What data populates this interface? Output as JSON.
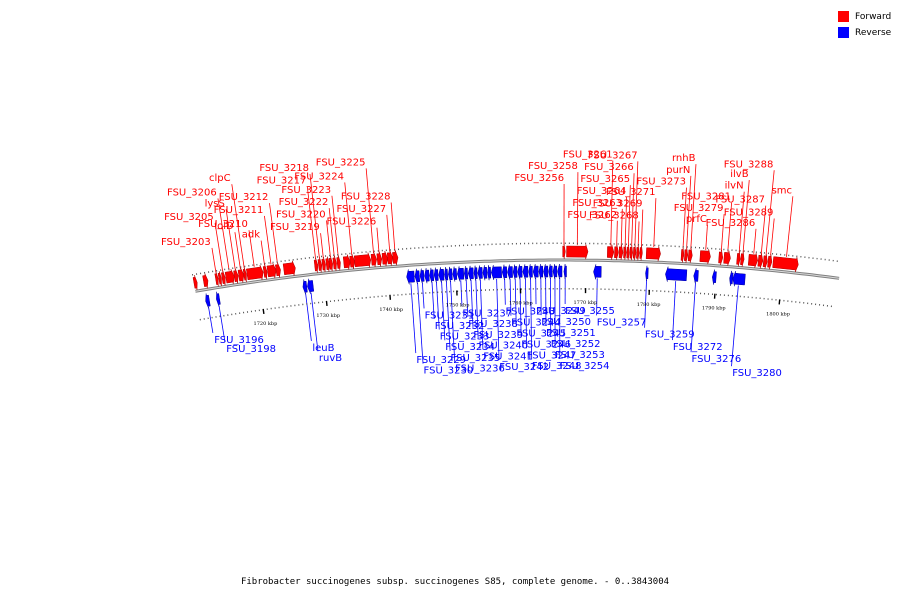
{
  "caption": "Fibrobacter succinogenes subsp. succinogenes S85, complete genome. - 0..3843004",
  "legend": [
    {
      "label": "Forward",
      "color": "#ff0000"
    },
    {
      "label": "Reverse",
      "color": "#0000ff"
    }
  ],
  "colors": {
    "forward": "#ff0000",
    "reverse": "#0000ff",
    "backbone": "#7f7f7f"
  },
  "ticks": [
    {
      "label": "1720 kbp",
      "pos": 0.1
    },
    {
      "label": "1730 kbp",
      "pos": 0.2
    },
    {
      "label": "1740 kbp",
      "pos": 0.3
    },
    {
      "label": "1750 kbp",
      "pos": 0.405
    },
    {
      "label": "1760 kbp",
      "pos": 0.505
    },
    {
      "label": "1770 kbp",
      "pos": 0.607
    },
    {
      "label": "1780 kbp",
      "pos": 0.707
    },
    {
      "label": "1790 kbp",
      "pos": 0.81
    },
    {
      "label": "1800 kbp",
      "pos": 0.912
    }
  ],
  "genes": [
    {
      "s": 0.0,
      "e": 0.005,
      "strand": "+",
      "label": ""
    },
    {
      "s": 0.015,
      "e": 0.022,
      "strand": "+",
      "label": ""
    },
    {
      "s": 0.013,
      "e": 0.019,
      "strand": "-",
      "label": "FSU_3196"
    },
    {
      "s": 0.03,
      "e": 0.035,
      "strand": "-",
      "label": "FSU_3198"
    },
    {
      "s": 0.034,
      "e": 0.038,
      "strand": "+",
      "label": "FSU_3203"
    },
    {
      "s": 0.039,
      "e": 0.043,
      "strand": "+",
      "label": ""
    },
    {
      "s": 0.044,
      "e": 0.049,
      "strand": "+",
      "label": "FSU_3205"
    },
    {
      "s": 0.05,
      "e": 0.063,
      "strand": "+",
      "label": "FSU_3206"
    },
    {
      "s": 0.063,
      "e": 0.069,
      "strand": "+",
      "label": "lysS"
    },
    {
      "s": 0.07,
      "e": 0.078,
      "strand": "+",
      "label": "lolD"
    },
    {
      "s": 0.078,
      "e": 0.082,
      "strand": "+",
      "label": "clpC"
    },
    {
      "s": 0.083,
      "e": 0.108,
      "strand": "+",
      "label": "FSU_3210"
    },
    {
      "s": 0.109,
      "e": 0.114,
      "strand": "+",
      "label": "adk"
    },
    {
      "s": 0.115,
      "e": 0.128,
      "strand": "+",
      "label": "FSU_3211"
    },
    {
      "s": 0.128,
      "e": 0.135,
      "strand": "+",
      "label": "FSU_3212"
    },
    {
      "s": 0.14,
      "e": 0.158,
      "strand": "+",
      "label": ""
    },
    {
      "s": 0.166,
      "e": 0.172,
      "strand": "-",
      "label": "leuB"
    },
    {
      "s": 0.173,
      "e": 0.182,
      "strand": "-",
      "label": "ruvB"
    },
    {
      "s": 0.188,
      "e": 0.193,
      "strand": "+",
      "label": "FSU_3217"
    },
    {
      "s": 0.194,
      "e": 0.199,
      "strand": "+",
      "label": "FSU_3218"
    },
    {
      "s": 0.2,
      "e": 0.205,
      "strand": "+",
      "label": "FSU_3219"
    },
    {
      "s": 0.206,
      "e": 0.211,
      "strand": "+",
      "label": ""
    },
    {
      "s": 0.211,
      "e": 0.216,
      "strand": "+",
      "label": "FSU_3220"
    },
    {
      "s": 0.217,
      "e": 0.222,
      "strand": "+",
      "label": "FSU_3222"
    },
    {
      "s": 0.223,
      "e": 0.228,
      "strand": "+",
      "label": "FSU_3223"
    },
    {
      "s": 0.233,
      "e": 0.243,
      "strand": "+",
      "label": ""
    },
    {
      "s": 0.243,
      "e": 0.25,
      "strand": "+",
      "label": "FSU_3224"
    },
    {
      "s": 0.25,
      "e": 0.275,
      "strand": "+",
      "label": ""
    },
    {
      "s": 0.276,
      "e": 0.284,
      "strand": "+",
      "label": "FSU_3225"
    },
    {
      "s": 0.285,
      "e": 0.292,
      "strand": "+",
      "label": "FSU_3226"
    },
    {
      "s": 0.293,
      "e": 0.301,
      "strand": "+",
      "label": ""
    },
    {
      "s": 0.301,
      "e": 0.309,
      "strand": "+",
      "label": "FSU_3227"
    },
    {
      "s": 0.309,
      "e": 0.317,
      "strand": "+",
      "label": "FSU_3228"
    },
    {
      "s": 0.328,
      "e": 0.34,
      "strand": "-",
      "label": "FSU_3229"
    },
    {
      "s": 0.341,
      "e": 0.348,
      "strand": "-",
      "label": "FSU_3230"
    },
    {
      "s": 0.349,
      "e": 0.355,
      "strand": "-",
      "label": "FSU_3231"
    },
    {
      "s": 0.356,
      "e": 0.363,
      "strand": "-",
      "label": ""
    },
    {
      "s": 0.364,
      "e": 0.37,
      "strand": "-",
      "label": "FSU_3232"
    },
    {
      "s": 0.371,
      "e": 0.377,
      "strand": "-",
      "label": "FSU_3233"
    },
    {
      "s": 0.378,
      "e": 0.386,
      "strand": "-",
      "label": "FSU_3234"
    },
    {
      "s": 0.387,
      "e": 0.392,
      "strand": "-",
      "label": "FSU_3235"
    },
    {
      "s": 0.393,
      "e": 0.399,
      "strand": "-",
      "label": "FSU_3236"
    },
    {
      "s": 0.4,
      "e": 0.406,
      "strand": "-",
      "label": ""
    },
    {
      "s": 0.407,
      "e": 0.417,
      "strand": "-",
      "label": "FSU_3237"
    },
    {
      "s": 0.418,
      "e": 0.423,
      "strand": "-",
      "label": "FSU_3238"
    },
    {
      "s": 0.424,
      "e": 0.432,
      "strand": "-",
      "label": "FSU_3239"
    },
    {
      "s": 0.433,
      "e": 0.438,
      "strand": "-",
      "label": "FSU_3240"
    },
    {
      "s": 0.439,
      "e": 0.446,
      "strand": "-",
      "label": "FSU_3241"
    },
    {
      "s": 0.447,
      "e": 0.453,
      "strand": "-",
      "label": ""
    },
    {
      "s": 0.454,
      "e": 0.459,
      "strand": "-",
      "label": ""
    },
    {
      "s": 0.46,
      "e": 0.476,
      "strand": "-",
      "label": "FSU_3242"
    },
    {
      "s": 0.477,
      "e": 0.484,
      "strand": "-",
      "label": "FSU_3243"
    },
    {
      "s": 0.485,
      "e": 0.493,
      "strand": "-",
      "label": "FSU_3244"
    },
    {
      "s": 0.494,
      "e": 0.5,
      "strand": "-",
      "label": "FSU_3245"
    },
    {
      "s": 0.501,
      "e": 0.508,
      "strand": "-",
      "label": "FSU_3246"
    },
    {
      "s": 0.509,
      "e": 0.517,
      "strand": "-",
      "label": "FSU_3247"
    },
    {
      "s": 0.518,
      "e": 0.524,
      "strand": "-",
      "label": "FSU_3248"
    },
    {
      "s": 0.525,
      "e": 0.533,
      "strand": "-",
      "label": "FSU_3249"
    },
    {
      "s": 0.534,
      "e": 0.54,
      "strand": "-",
      "label": "FSU_3250"
    },
    {
      "s": 0.541,
      "e": 0.548,
      "strand": "-",
      "label": "FSU_3251"
    },
    {
      "s": 0.549,
      "e": 0.555,
      "strand": "-",
      "label": "FSU_3252"
    },
    {
      "s": 0.556,
      "e": 0.562,
      "strand": "-",
      "label": "FSU_3253"
    },
    {
      "s": 0.563,
      "e": 0.57,
      "strand": "-",
      "label": "FSU_3254"
    },
    {
      "s": 0.573,
      "e": 0.577,
      "strand": "-",
      "label": "FSU_3255"
    },
    {
      "s": 0.571,
      "e": 0.575,
      "strand": "+",
      "label": "FSU_3256"
    },
    {
      "s": 0.577,
      "e": 0.61,
      "strand": "+",
      "label": "FSU_3258"
    },
    {
      "s": 0.619,
      "e": 0.631,
      "strand": "-",
      "label": "FSU_3257"
    },
    {
      "s": 0.64,
      "e": 0.65,
      "strand": "+",
      "label": "FSU_3261"
    },
    {
      "s": 0.651,
      "e": 0.657,
      "strand": "+",
      "label": "FSU_3262"
    },
    {
      "s": 0.658,
      "e": 0.664,
      "strand": "+",
      "label": "FSU_3263"
    },
    {
      "s": 0.665,
      "e": 0.669,
      "strand": "+",
      "label": "FSU_3264"
    },
    {
      "s": 0.67,
      "e": 0.674,
      "strand": "+",
      "label": "FSU_3265"
    },
    {
      "s": 0.675,
      "e": 0.679,
      "strand": "+",
      "label": "FSU_3266"
    },
    {
      "s": 0.68,
      "e": 0.684,
      "strand": "+",
      "label": "FSU_3267"
    },
    {
      "s": 0.685,
      "e": 0.689,
      "strand": "+",
      "label": "FSU_3268"
    },
    {
      "s": 0.69,
      "e": 0.694,
      "strand": "+",
      "label": "FSU_3269"
    },
    {
      "s": 0.7,
      "e": 0.722,
      "strand": "+",
      "label": "FSU_3271"
    },
    {
      "s": 0.7,
      "e": 0.704,
      "strand": "-",
      "label": "FSU_3259"
    },
    {
      "s": 0.731,
      "e": 0.764,
      "strand": "-",
      "label": "FSU_3272"
    },
    {
      "s": 0.754,
      "e": 0.758,
      "strand": "+",
      "label": "FSU_3273"
    },
    {
      "s": 0.759,
      "e": 0.764,
      "strand": "+",
      "label": "purN"
    },
    {
      "s": 0.765,
      "e": 0.771,
      "strand": "+",
      "label": "rnhB"
    },
    {
      "s": 0.775,
      "e": 0.782,
      "strand": "-",
      "label": "FSU_3276"
    },
    {
      "s": 0.783,
      "e": 0.799,
      "strand": "+",
      "label": "prfC"
    },
    {
      "s": 0.804,
      "e": 0.81,
      "strand": "-",
      "label": ""
    },
    {
      "s": 0.812,
      "e": 0.818,
      "strand": "+",
      "label": "FSU_3279"
    },
    {
      "s": 0.82,
      "e": 0.83,
      "strand": "+",
      "label": "FSU_3281"
    },
    {
      "s": 0.831,
      "e": 0.836,
      "strand": "-",
      "label": ""
    },
    {
      "s": 0.836,
      "e": 0.855,
      "strand": "-",
      "label": "FSU_3280"
    },
    {
      "s": 0.84,
      "e": 0.845,
      "strand": "+",
      "label": "ilvN"
    },
    {
      "s": 0.846,
      "e": 0.851,
      "strand": "+",
      "label": "ilvB"
    },
    {
      "s": 0.858,
      "e": 0.872,
      "strand": "+",
      "label": "FSU_3286"
    },
    {
      "s": 0.873,
      "e": 0.88,
      "strand": "+",
      "label": "FSU_3287"
    },
    {
      "s": 0.881,
      "e": 0.887,
      "strand": "+",
      "label": "FSU_3288"
    },
    {
      "s": 0.888,
      "e": 0.894,
      "strand": "+",
      "label": "FSU_3289"
    },
    {
      "s": 0.896,
      "e": 0.935,
      "strand": "+",
      "label": "smc"
    }
  ],
  "forward_labels": [
    {
      "gene": "FSU_3203",
      "text": "FSU_3203"
    },
    {
      "gene": "lolD",
      "text": "lolD"
    },
    {
      "gene": "FSU_3205",
      "text": "FSU_3205"
    },
    {
      "gene": "lysS",
      "text": "lysS"
    },
    {
      "gene": "FSU_3206",
      "text": "FSU_3206"
    },
    {
      "gene": "clpC",
      "text": "clpC"
    },
    {
      "gene": "adk",
      "text": "adk"
    },
    {
      "gene": "FSU_3210",
      "text": "FSU_3210"
    },
    {
      "gene": "FSU_3211",
      "text": "FSU_3211"
    },
    {
      "gene": "FSU_3212",
      "text": "FSU_3212"
    },
    {
      "gene": "FSU_3217",
      "text": "FSU_3217"
    },
    {
      "gene": "FSU_3218",
      "text": "FSU_3218"
    },
    {
      "gene": "FSU_3219",
      "text": "FSU_3219"
    },
    {
      "gene": "FSU_3220",
      "text": "FSU_3220"
    },
    {
      "gene": "FSU_3222",
      "text": "FSU_3222"
    },
    {
      "gene": "FSU_3223",
      "text": "FSU_3223"
    },
    {
      "gene": "FSU_3224",
      "text": "FSU_3224"
    },
    {
      "gene": "FSU_3225",
      "text": "FSU_3225"
    },
    {
      "gene": "FSU_3226",
      "text": "FSU_3226"
    },
    {
      "gene": "FSU_3227",
      "text": "FSU_3227"
    },
    {
      "gene": "FSU_3228",
      "text": "FSU_3228"
    },
    {
      "gene": "FSU_3256",
      "text": "FSU_3256"
    },
    {
      "gene": "FSU_3258",
      "text": "FSU_3258"
    },
    {
      "gene": "FSU_3261",
      "text": "FSU_3261"
    },
    {
      "gene": "FSU_3262",
      "text": "FSU_3262"
    },
    {
      "gene": "FSU_3263",
      "text": "FSU_3263"
    },
    {
      "gene": "FSU_3264",
      "text": "FSU_3264"
    },
    {
      "gene": "FSU_3265",
      "text": "FSU_3265"
    },
    {
      "gene": "FSU_3266",
      "text": "FSU_3266"
    },
    {
      "gene": "FSU_3267",
      "text": "FSU_3267"
    },
    {
      "gene": "FSU_3268",
      "text": "FSU_3268"
    },
    {
      "gene": "FSU_3269",
      "text": "FSU_3269"
    },
    {
      "gene": "FSU_3271",
      "text": "FSU_3271"
    },
    {
      "gene": "FSU_3273",
      "text": "FSU_3273"
    },
    {
      "gene": "purN",
      "text": "purN"
    },
    {
      "gene": "rnhB",
      "text": "rnhB"
    },
    {
      "gene": "prfC",
      "text": "prfC"
    },
    {
      "gene": "FSU_3279",
      "text": "FSU_3279"
    },
    {
      "gene": "FSU_3281",
      "text": "FSU_3281"
    },
    {
      "gene": "ilvN",
      "text": "ilvN"
    },
    {
      "gene": "ilvB",
      "text": "ilvB"
    },
    {
      "gene": "FSU_3288",
      "text": "FSU_3288"
    },
    {
      "gene": "FSU_3286",
      "text": "FSU_3286"
    },
    {
      "gene": "FSU_3289",
      "text": "FSU_3289"
    },
    {
      "gene": "FSU_3287",
      "text": "FSU_3287"
    },
    {
      "gene": "smc",
      "text": "smc"
    }
  ],
  "reverse_labels": [
    {
      "gene": "FSU_3196",
      "text": "FSU_3196"
    },
    {
      "gene": "FSU_3198",
      "text": "FSU_3198"
    },
    {
      "gene": "leuB",
      "text": "leuB"
    },
    {
      "gene": "ruvB",
      "text": "ruvB"
    },
    {
      "gene": "FSU_3229",
      "text": "FSU_3229"
    },
    {
      "gene": "FSU_3230",
      "text": "FSU_3230"
    },
    {
      "gene": "FSU_3231",
      "text": "FSU_3231"
    },
    {
      "gene": "FSU_3232",
      "text": "FSU_3232"
    },
    {
      "gene": "FSU_3233",
      "text": "FSU_3233"
    },
    {
      "gene": "FSU_3234",
      "text": "FSU_3234"
    },
    {
      "gene": "FSU_3235",
      "text": "FSU_3235"
    },
    {
      "gene": "FSU_3236",
      "text": "FSU_3236"
    },
    {
      "gene": "FSU_3237",
      "text": "FSU_3237"
    },
    {
      "gene": "FSU_3238",
      "text": "FSU_3238"
    },
    {
      "gene": "FSU_3239",
      "text": "FSU_3239"
    },
    {
      "gene": "FSU_3240",
      "text": "FSU_3240"
    },
    {
      "gene": "FSU_3241",
      "text": "FSU_3241"
    },
    {
      "gene": "FSU_3242",
      "text": "FSU_3242"
    },
    {
      "gene": "FSU_3243",
      "text": "FSU_3243"
    },
    {
      "gene": "FSU_3244",
      "text": "FSU_3244"
    },
    {
      "gene": "FSU_3245",
      "text": "FSU_3245"
    },
    {
      "gene": "FSU_3246",
      "text": "FSU_3246"
    },
    {
      "gene": "FSU_3247",
      "text": "FSU_3247"
    },
    {
      "gene": "FSU_3248",
      "text": "FSU_3248"
    },
    {
      "gene": "FSU_3249",
      "text": "FSU_3249"
    },
    {
      "gene": "FSU_3250",
      "text": "FSU_3250"
    },
    {
      "gene": "FSU_3251",
      "text": "FSU_3251"
    },
    {
      "gene": "FSU_3252",
      "text": "FSU_3252"
    },
    {
      "gene": "FSU_3253",
      "text": "FSU_3253"
    },
    {
      "gene": "FSU_3254",
      "text": "FSU_3254"
    },
    {
      "gene": "FSU_3255",
      "text": "FSU_3255"
    },
    {
      "gene": "FSU_3257",
      "text": "FSU_3257"
    },
    {
      "gene": "FSU_3259",
      "text": "FSU_3259"
    },
    {
      "gene": "FSU_3272",
      "text": "FSU_3272"
    },
    {
      "gene": "FSU_3276",
      "text": "FSU_3276"
    },
    {
      "gene": "FSU_3280",
      "text": "FSU_3280"
    }
  ]
}
